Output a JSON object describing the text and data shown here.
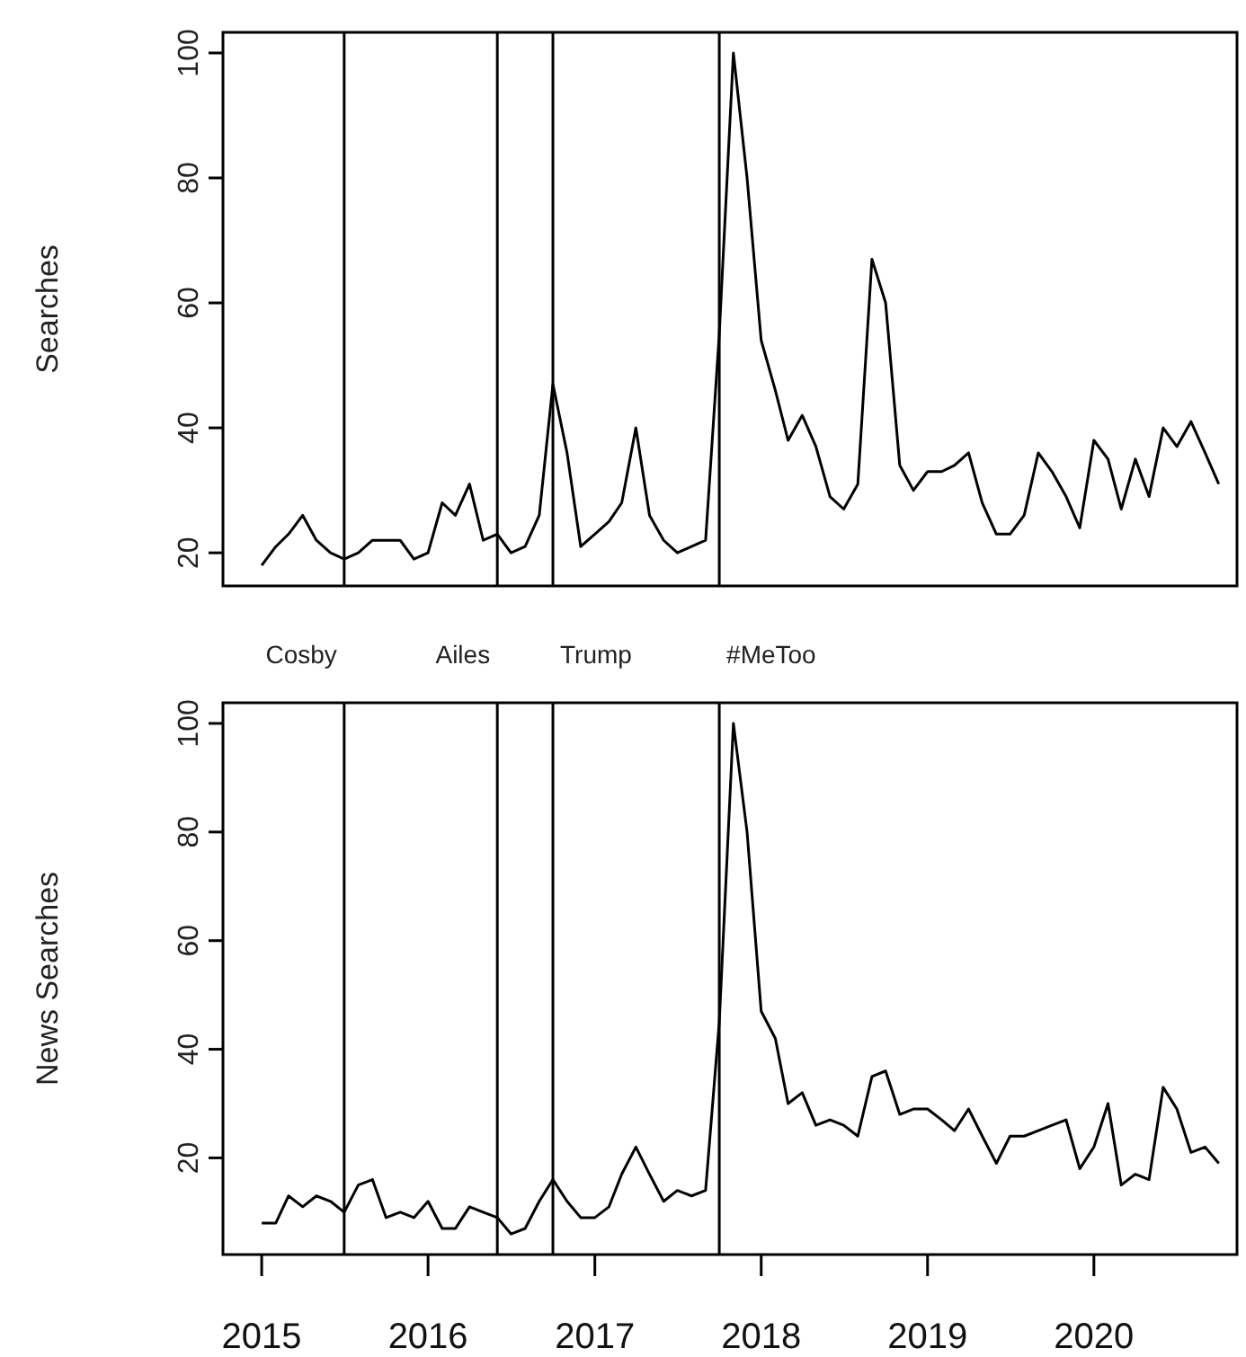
{
  "chart_data": [
    {
      "type": "line",
      "ylabel": "Searches",
      "tick_labels": "y",
      "x": [
        "2015-01",
        "2015-02",
        "2015-03",
        "2015-04",
        "2015-05",
        "2015-06",
        "2015-07",
        "2015-08",
        "2015-09",
        "2015-10",
        "2015-11",
        "2015-12",
        "2016-01",
        "2016-02",
        "2016-03",
        "2016-04",
        "2016-05",
        "2016-06",
        "2016-07",
        "2016-08",
        "2016-09",
        "2016-10",
        "2016-11",
        "2016-12",
        "2017-01",
        "2017-02",
        "2017-03",
        "2017-04",
        "2017-05",
        "2017-06",
        "2017-07",
        "2017-08",
        "2017-09",
        "2017-10",
        "2017-11",
        "2017-12",
        "2018-01",
        "2018-02",
        "2018-03",
        "2018-04",
        "2018-05",
        "2018-06",
        "2018-07",
        "2018-08",
        "2018-09",
        "2018-10",
        "2018-11",
        "2018-12",
        "2019-01",
        "2019-02",
        "2019-03",
        "2019-04",
        "2019-05",
        "2019-06",
        "2019-07",
        "2019-08",
        "2019-09",
        "2019-10",
        "2019-11",
        "2019-12",
        "2020-01",
        "2020-02",
        "2020-03",
        "2020-04",
        "2020-05",
        "2020-06",
        "2020-07",
        "2020-08",
        "2020-09",
        "2020-10"
      ],
      "series": [
        {
          "color": "#000000",
          "values": [
            18,
            21,
            23,
            26,
            22,
            20,
            19,
            20,
            22,
            22,
            22,
            19,
            20,
            28,
            26,
            31,
            22,
            23,
            20,
            21,
            26,
            47,
            36,
            21,
            23,
            25,
            28,
            40,
            26,
            22,
            20,
            21,
            22,
            55,
            100,
            80,
            54,
            46,
            38,
            42,
            37,
            29,
            27,
            31,
            67,
            60,
            34,
            30,
            33,
            33,
            34,
            36,
            28,
            23,
            23,
            26,
            36,
            33,
            29,
            24,
            38,
            35,
            27,
            35,
            29,
            40,
            37,
            41,
            36,
            31
          ]
        }
      ],
      "xlim": [
        "2014-10-08",
        "2020-11-10"
      ],
      "ylim": [
        14.7,
        103.3
      ],
      "yticks": [
        20,
        40,
        60,
        80,
        100
      ],
      "grid": false,
      "ref_lines": [
        {
          "axis": "x",
          "value": "2015-07",
          "color": "#000000"
        },
        {
          "axis": "x",
          "value": "2016-06",
          "color": "#000000"
        },
        {
          "axis": "x",
          "value": "2016-10",
          "color": "#000000"
        },
        {
          "axis": "x",
          "value": "2017-10",
          "color": "#000000"
        }
      ]
    },
    {
      "type": "line",
      "ylabel": "News Searches",
      "x": [
        "2015-01",
        "2015-02",
        "2015-03",
        "2015-04",
        "2015-05",
        "2015-06",
        "2015-07",
        "2015-08",
        "2015-09",
        "2015-10",
        "2015-11",
        "2015-12",
        "2016-01",
        "2016-02",
        "2016-03",
        "2016-04",
        "2016-05",
        "2016-06",
        "2016-07",
        "2016-08",
        "2016-09",
        "2016-10",
        "2016-11",
        "2016-12",
        "2017-01",
        "2017-02",
        "2017-03",
        "2017-04",
        "2017-05",
        "2017-06",
        "2017-07",
        "2017-08",
        "2017-09",
        "2017-10",
        "2017-11",
        "2017-12",
        "2018-01",
        "2018-02",
        "2018-03",
        "2018-04",
        "2018-05",
        "2018-06",
        "2018-07",
        "2018-08",
        "2018-09",
        "2018-10",
        "2018-11",
        "2018-12",
        "2019-01",
        "2019-02",
        "2019-03",
        "2019-04",
        "2019-05",
        "2019-06",
        "2019-07",
        "2019-08",
        "2019-09",
        "2019-10",
        "2019-11",
        "2019-12",
        "2020-01",
        "2020-02",
        "2020-03",
        "2020-04",
        "2020-05",
        "2020-06",
        "2020-07",
        "2020-08",
        "2020-09",
        "2020-10"
      ],
      "series": [
        {
          "color": "#000000",
          "values": [
            8,
            8,
            13,
            11,
            13,
            12,
            10,
            15,
            16,
            9,
            10,
            9,
            12,
            7,
            7,
            11,
            10,
            9,
            6,
            7,
            12,
            16,
            12,
            9,
            9,
            11,
            17,
            22,
            17,
            12,
            14,
            13,
            14,
            45,
            100,
            80,
            47,
            42,
            30,
            32,
            26,
            27,
            26,
            24,
            35,
            36,
            28,
            29,
            29,
            27,
            25,
            29,
            24,
            19,
            24,
            24,
            25,
            26,
            27,
            18,
            22,
            30,
            15,
            17,
            16,
            33,
            29,
            21,
            22,
            19
          ]
        }
      ],
      "xlim": [
        "2014-10-08",
        "2020-11-10"
      ],
      "xticks": [
        {
          "value": "2015",
          "label": "2015"
        },
        {
          "value": "2016",
          "label": "2016"
        },
        {
          "value": "2017",
          "label": "2017"
        },
        {
          "value": "2018",
          "label": "2018"
        },
        {
          "value": "2019",
          "label": "2019"
        },
        {
          "value": "2020",
          "label": "2020"
        }
      ],
      "ylim": [
        2.2,
        103.8
      ],
      "yticks": [
        20,
        40,
        60,
        80,
        100
      ],
      "grid": false,
      "ref_lines": [
        {
          "axis": "x",
          "value": "2015-07",
          "label": "Cosby",
          "color": "#000000"
        },
        {
          "axis": "x",
          "value": "2016-06",
          "label": "Ailes",
          "color": "#000000"
        },
        {
          "axis": "x",
          "value": "2016-10",
          "label": "Trump",
          "color": "#000000"
        },
        {
          "axis": "x",
          "value": "2017-10",
          "label": "#MeToo",
          "color": "#000000"
        }
      ]
    }
  ]
}
